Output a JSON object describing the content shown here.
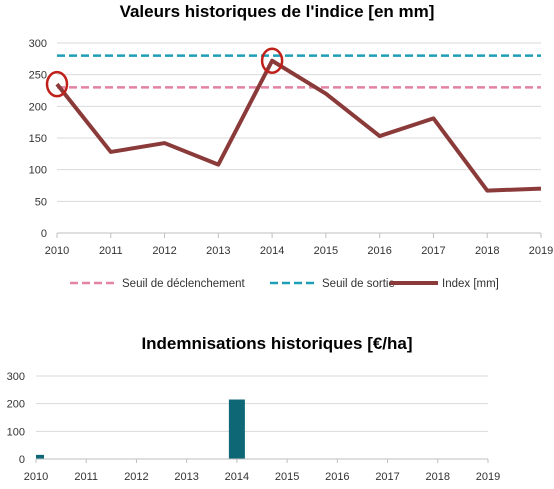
{
  "chart_data": [
    {
      "type": "line",
      "title": "Valeurs historiques de l'indice [en mm]",
      "x": [
        2010,
        2011,
        2012,
        2013,
        2014,
        2015,
        2016,
        2017,
        2018,
        2019
      ],
      "ylim": [
        0,
        300
      ],
      "yticks": [
        0,
        50,
        100,
        150,
        200,
        250,
        300
      ],
      "grid": true,
      "legend_position": "bottom",
      "series": [
        {
          "name": "Seuil de déclenchement",
          "style": "dashed",
          "color": "#e383a3",
          "values": [
            230,
            230,
            230,
            230,
            230,
            230,
            230,
            230,
            230,
            230
          ]
        },
        {
          "name": "Seuil de sortie",
          "style": "dashed",
          "color": "#1e9fb6",
          "values": [
            280,
            280,
            280,
            280,
            280,
            280,
            280,
            280,
            280,
            280
          ]
        },
        {
          "name": "Index [mm]",
          "style": "solid",
          "color": "#8b3a3a",
          "values": [
            235,
            128,
            142,
            108,
            272,
            220,
            153,
            181,
            67,
            70
          ]
        }
      ],
      "annotations": [
        {
          "type": "circle",
          "x": 2010,
          "y": 235,
          "color": "#c0201a"
        },
        {
          "type": "circle",
          "x": 2014,
          "y": 272,
          "color": "#c0201a"
        }
      ]
    },
    {
      "type": "bar",
      "title": "Indemnisations historiques [€/ha]",
      "categories": [
        2010,
        2011,
        2012,
        2013,
        2014,
        2015,
        2016,
        2017,
        2018,
        2019
      ],
      "values": [
        15,
        0,
        0,
        0,
        215,
        0,
        0,
        0,
        0,
        0
      ],
      "ylim": [
        0,
        300
      ],
      "yticks": [
        0,
        100,
        200,
        300
      ],
      "grid": true,
      "color": "#0e6775"
    }
  ]
}
